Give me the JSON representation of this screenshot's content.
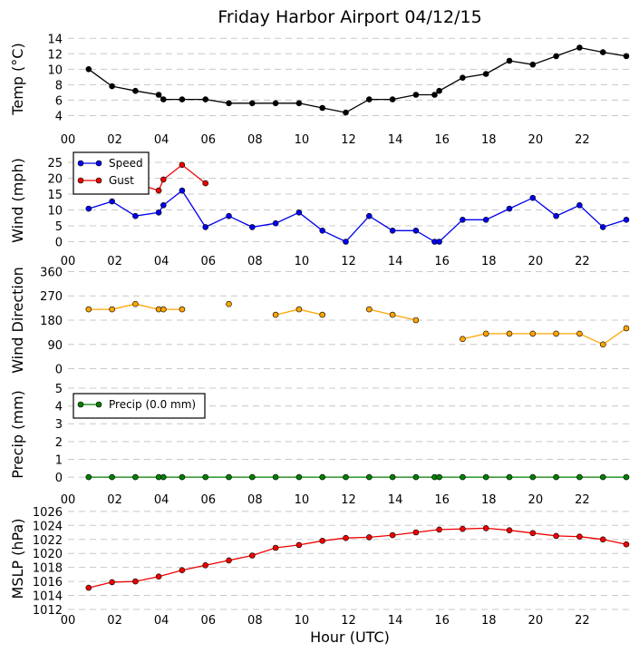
{
  "chart_data": {
    "title": "Friday Harbor Airport 04/12/15",
    "xlabel": "Hour (UTC)",
    "x_ticks": [
      "00",
      "02",
      "04",
      "06",
      "08",
      "10",
      "12",
      "14",
      "16",
      "18",
      "20",
      "22"
    ],
    "xlim": [
      0,
      24
    ],
    "panels": [
      {
        "id": "temp",
        "type": "line",
        "ylabel": "Temp ($^\\circ$C)",
        "ylabel_display": "Temp (°C)",
        "ylim": [
          3,
          14.5
        ],
        "yticks": [
          4,
          6,
          8,
          10,
          12,
          14
        ],
        "show_xticklabels": true,
        "series": [
          {
            "color": "#000000",
            "line": true,
            "points": [
              [
                0.883,
                10.0
              ],
              [
                1.883,
                7.8
              ],
              [
                2.883,
                7.2
              ],
              [
                3.883,
                6.7
              ],
              [
                4.083,
                6.1
              ],
              [
                4.883,
                6.1
              ],
              [
                5.883,
                6.1
              ],
              [
                6.883,
                5.6
              ],
              [
                7.883,
                5.6
              ],
              [
                8.883,
                5.6
              ],
              [
                9.883,
                5.6
              ],
              [
                10.883,
                5.0
              ],
              [
                11.883,
                4.4
              ],
              [
                12.883,
                6.1
              ],
              [
                13.883,
                6.1
              ],
              [
                14.883,
                6.7
              ],
              [
                15.683,
                6.7
              ],
              [
                15.883,
                7.2
              ],
              [
                16.883,
                8.9
              ],
              [
                17.883,
                9.4
              ],
              [
                18.883,
                11.1
              ],
              [
                19.883,
                10.6
              ],
              [
                20.883,
                11.7
              ],
              [
                21.883,
                12.8
              ],
              [
                22.883,
                12.2
              ],
              [
                23.883,
                11.7
              ]
            ]
          }
        ]
      },
      {
        "id": "wind",
        "type": "line",
        "ylabel": "Wind (mph)",
        "ylim": [
          -1,
          27
        ],
        "yticks": [
          0,
          5,
          10,
          15,
          20,
          25
        ],
        "show_xticklabels": true,
        "legend": {
          "placement": "upper-left",
          "entries": [
            "Speed",
            "Gust"
          ]
        },
        "series": [
          {
            "name": "Speed",
            "color": "#0000ee",
            "line": true,
            "points": [
              [
                0.883,
                10.4
              ],
              [
                1.883,
                12.7
              ],
              [
                2.883,
                8.1
              ],
              [
                3.883,
                9.2
              ],
              [
                4.083,
                11.5
              ],
              [
                4.883,
                16.1
              ],
              [
                5.883,
                4.6
              ],
              [
                6.883,
                8.1
              ],
              [
                7.883,
                4.6
              ],
              [
                8.883,
                5.8
              ],
              [
                9.883,
                9.2
              ],
              [
                10.883,
                3.5
              ],
              [
                11.883,
                0.0
              ],
              [
                12.883,
                8.1
              ],
              [
                13.883,
                3.5
              ],
              [
                14.883,
                3.5
              ],
              [
                15.683,
                0.0
              ],
              [
                15.883,
                0.0
              ],
              [
                16.883,
                6.9
              ],
              [
                17.883,
                6.9
              ],
              [
                18.883,
                10.4
              ],
              [
                19.883,
                13.8
              ],
              [
                20.883,
                8.1
              ],
              [
                21.883,
                11.5
              ],
              [
                22.883,
                4.6
              ],
              [
                23.883,
                6.9
              ]
            ]
          },
          {
            "name": "Gust",
            "color": "#ee0000",
            "line": true,
            "points": [
              [
                2.883,
                18.4
              ],
              [
                3.883,
                16.1
              ],
              [
                4.083,
                19.6
              ],
              [
                4.883,
                24.2
              ],
              [
                5.883,
                18.4
              ]
            ]
          }
        ]
      },
      {
        "id": "wdir",
        "type": "scatter",
        "ylabel": "Wind Direction",
        "ylim": [
          -5,
          365
        ],
        "yticks": [
          0,
          90,
          180,
          270,
          360
        ],
        "show_xticklabels": false,
        "series": [
          {
            "color": "#ffa500",
            "line": true,
            "points": [
              [
                0.883,
                220
              ],
              [
                1.883,
                220
              ],
              [
                2.883,
                240
              ],
              [
                3.883,
                220
              ],
              [
                4.083,
                220
              ],
              [
                4.883,
                220
              ],
              null,
              [
                6.883,
                240
              ],
              null,
              [
                8.883,
                200
              ],
              [
                9.883,
                220
              ],
              [
                10.883,
                200
              ],
              null,
              [
                12.883,
                220
              ],
              [
                13.883,
                200
              ],
              [
                14.883,
                180
              ],
              null,
              [
                16.883,
                110
              ],
              [
                17.883,
                130
              ],
              [
                18.883,
                130
              ],
              [
                19.883,
                130
              ],
              [
                20.883,
                130
              ],
              [
                21.883,
                130
              ],
              [
                22.883,
                90
              ],
              [
                23.883,
                150
              ]
            ]
          }
        ]
      },
      {
        "id": "precip",
        "type": "line",
        "ylabel": "Precip (mm)",
        "ylim": [
          -0.2,
          5
        ],
        "yticks": [
          0,
          1,
          2,
          3,
          4,
          5
        ],
        "show_xticklabels": true,
        "legend": {
          "placement": "upper-left",
          "entries": [
            "Precip (0.0 mm)"
          ]
        },
        "series": [
          {
            "name": "Precip (0.0 mm)",
            "color": "#008000",
            "line": true,
            "points": [
              [
                0.883,
                0
              ],
              [
                1.883,
                0
              ],
              [
                2.883,
                0
              ],
              [
                3.883,
                0
              ],
              [
                4.083,
                0
              ],
              [
                4.883,
                0
              ],
              [
                5.883,
                0
              ],
              [
                6.883,
                0
              ],
              [
                7.883,
                0
              ],
              [
                8.883,
                0
              ],
              [
                9.883,
                0
              ],
              [
                10.883,
                0
              ],
              [
                11.883,
                0
              ],
              [
                12.883,
                0
              ],
              [
                13.883,
                0
              ],
              [
                14.883,
                0
              ],
              [
                15.683,
                0
              ],
              [
                15.883,
                0
              ],
              [
                16.883,
                0
              ],
              [
                17.883,
                0
              ],
              [
                18.883,
                0
              ],
              [
                19.883,
                0
              ],
              [
                20.883,
                0
              ],
              [
                21.883,
                0
              ],
              [
                22.883,
                0
              ],
              [
                23.883,
                0
              ]
            ]
          }
        ]
      },
      {
        "id": "mslp",
        "type": "line",
        "ylabel": "MSLP (hPa)",
        "ylim": [
          1012,
          1026.5
        ],
        "yticks": [
          1012,
          1014,
          1016,
          1018,
          1020,
          1022,
          1024,
          1026
        ],
        "show_xticklabels": true,
        "series": [
          {
            "color": "#ee0000",
            "line": true,
            "points": [
              [
                0.883,
                1015.1
              ],
              [
                1.883,
                1015.9
              ],
              [
                2.883,
                1016.0
              ],
              [
                3.883,
                1016.7
              ],
              [
                4.883,
                1017.6
              ],
              [
                5.883,
                1018.3
              ],
              [
                6.883,
                1019.0
              ],
              [
                7.883,
                1019.7
              ],
              [
                8.883,
                1020.8
              ],
              [
                9.883,
                1021.2
              ],
              [
                10.883,
                1021.8
              ],
              [
                11.883,
                1022.2
              ],
              [
                12.883,
                1022.3
              ],
              [
                13.883,
                1022.6
              ],
              [
                14.883,
                1023.0
              ],
              [
                15.883,
                1023.4
              ],
              [
                16.883,
                1023.5
              ],
              [
                17.883,
                1023.6
              ],
              [
                18.883,
                1023.3
              ],
              [
                19.883,
                1022.9
              ],
              [
                20.883,
                1022.5
              ],
              [
                21.883,
                1022.4
              ],
              [
                22.883,
                1022.0
              ],
              [
                23.883,
                1021.3
              ]
            ]
          }
        ]
      }
    ]
  }
}
